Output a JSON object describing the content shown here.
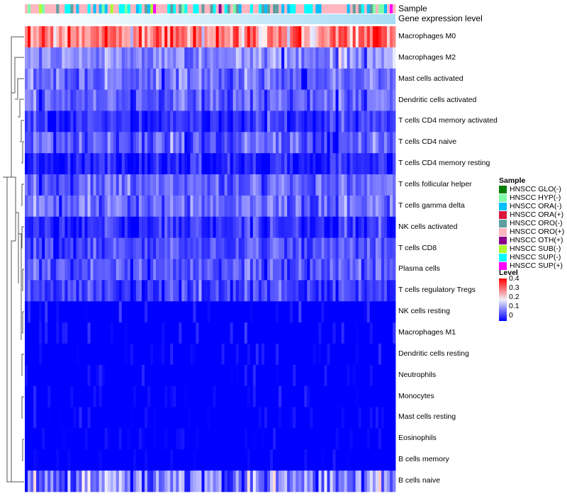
{
  "annotation_titles": {
    "sample": "Sample",
    "gene": "Gene expression level"
  },
  "legend": {
    "sample_title": "Sample",
    "samples": [
      {
        "label": "HNSCC GLO(-)",
        "color": "#007F00"
      },
      {
        "label": "HNSCC HYP(-)",
        "color": "#7FFFAA"
      },
      {
        "label": "HNSCC ORA(-)",
        "color": "#00BFFF"
      },
      {
        "label": "HNSCC ORA(+)",
        "color": "#DC143C"
      },
      {
        "label": "HNSCC ORO(-)",
        "color": "#5F9EA0"
      },
      {
        "label": "HNSCC ORO(+)",
        "color": "#FFB6C1"
      },
      {
        "label": "HNSCC OTH(+)",
        "color": "#8B008B"
      },
      {
        "label": "HNSCC SUB(-)",
        "color": "#ADFF2F"
      },
      {
        "label": "HNSCC SUP(-)",
        "color": "#00FFFF"
      },
      {
        "label": "HNSCC SUP(+)",
        "color": "#FF00FF"
      }
    ],
    "level_title": "Level",
    "level_ticks": [
      "0.4",
      "0.3",
      "0.2",
      "0.1",
      "0"
    ]
  },
  "chart_data": {
    "type": "heatmap",
    "color_scale": {
      "low": "#0000FF",
      "mid": "#FFFFFF",
      "high": "#FF0000",
      "range": [
        0,
        0.4
      ],
      "midpoint": 0.2
    },
    "n_columns": 130,
    "rows": [
      {
        "name": "Macrophages M0",
        "mean": 0.29,
        "sd": 0.08
      },
      {
        "name": "Macrophages M2",
        "mean": 0.12,
        "sd": 0.05
      },
      {
        "name": "Mast cells activated",
        "mean": 0.09,
        "sd": 0.05
      },
      {
        "name": "Dendritic cells activated",
        "mean": 0.08,
        "sd": 0.04
      },
      {
        "name": "T cells CD4 memory activated",
        "mean": 0.04,
        "sd": 0.04
      },
      {
        "name": "T cells CD4 naive",
        "mean": 0.07,
        "sd": 0.05
      },
      {
        "name": "T cells CD4 memory resting",
        "mean": 0.03,
        "sd": 0.04
      },
      {
        "name": "T cells follicular helper",
        "mean": 0.08,
        "sd": 0.04
      },
      {
        "name": "T cells gamma delta",
        "mean": 0.09,
        "sd": 0.05
      },
      {
        "name": "NK cells activated",
        "mean": 0.04,
        "sd": 0.04
      },
      {
        "name": "T cells CD8",
        "mean": 0.06,
        "sd": 0.04
      },
      {
        "name": "Plasma cells",
        "mean": 0.07,
        "sd": 0.04
      },
      {
        "name": "T cells regulatory  Tregs",
        "mean": 0.05,
        "sd": 0.05
      },
      {
        "name": "NK cells resting",
        "mean": 0.02,
        "sd": 0.03
      },
      {
        "name": "Macrophages M1",
        "mean": 0.02,
        "sd": 0.03
      },
      {
        "name": "Dendritic cells resting",
        "mean": 0.01,
        "sd": 0.02
      },
      {
        "name": "Neutrophils",
        "mean": 0.005,
        "sd": 0.02
      },
      {
        "name": "Monocytes",
        "mean": 0.008,
        "sd": 0.02
      },
      {
        "name": "Mast cells resting",
        "mean": 0.01,
        "sd": 0.02
      },
      {
        "name": "Eosinophils",
        "mean": 0.004,
        "sd": 0.015
      },
      {
        "name": "B cells memory",
        "mean": 0.005,
        "sd": 0.015
      },
      {
        "name": "B cells naive",
        "mean": 0.11,
        "sd": 0.09
      }
    ]
  }
}
